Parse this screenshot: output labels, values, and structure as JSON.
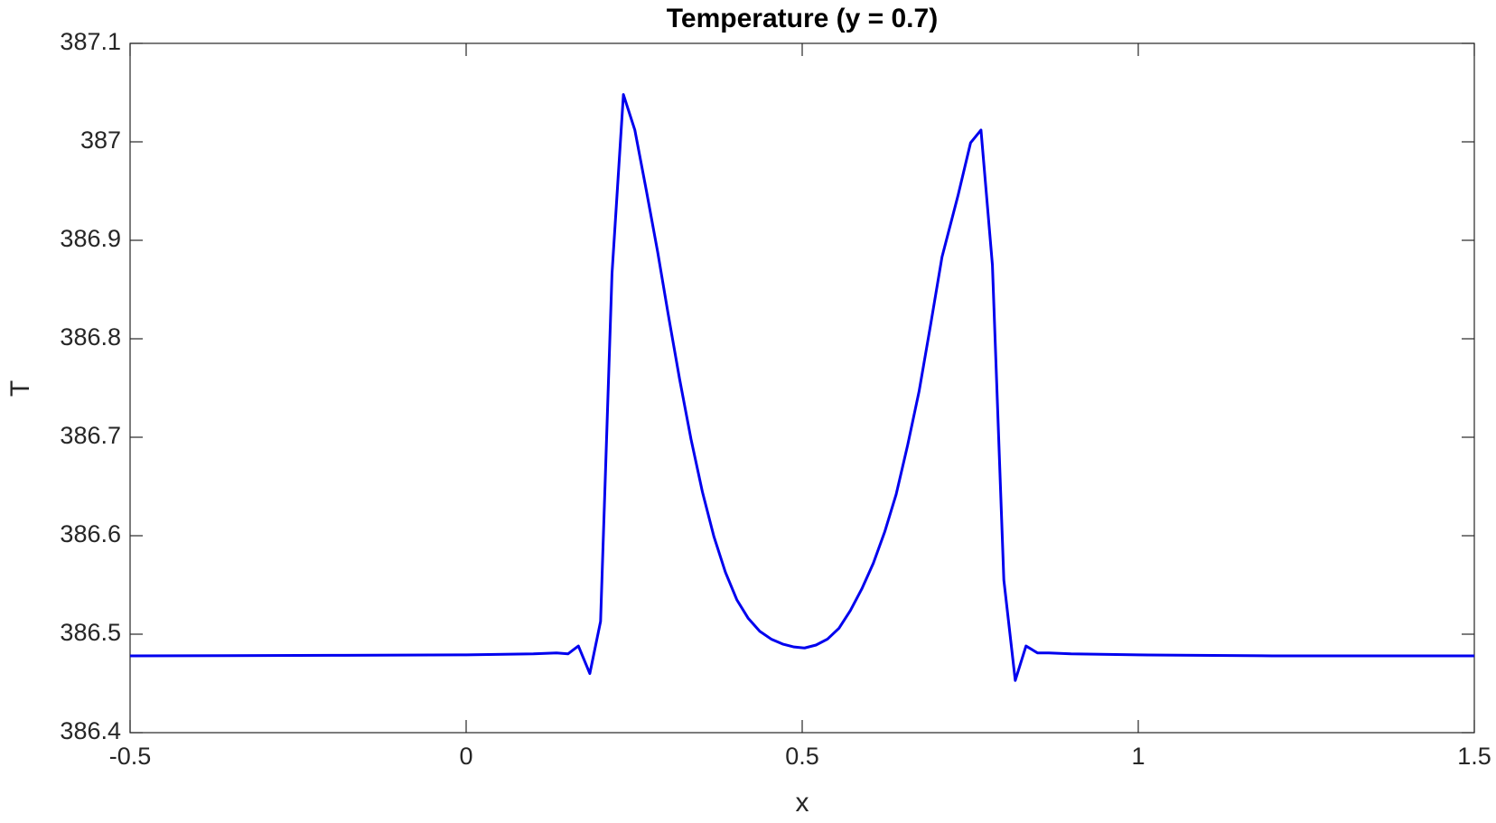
{
  "chart_data": {
    "type": "line",
    "title": "Temperature (y = 0.7)",
    "xlabel": "x",
    "ylabel": "T",
    "series": [
      {
        "name": "T",
        "color": "#0000ee",
        "x": [
          -0.5,
          -0.2,
          0,
          0.1,
          0.1345,
          0.1515,
          0.167,
          0.184,
          0.2,
          0.217,
          0.234,
          0.251,
          0.268,
          0.285,
          0.3006,
          0.3176,
          0.3346,
          0.3517,
          0.3687,
          0.3857,
          0.4027,
          0.4198,
          0.4368,
          0.4539,
          0.4709,
          0.488,
          0.5036,
          0.5206,
          0.5376,
          0.5547,
          0.5717,
          0.5887,
          0.6058,
          0.6228,
          0.6398,
          0.6569,
          0.674,
          0.691,
          0.708,
          0.732,
          0.7505,
          0.766,
          0.783,
          0.8,
          0.817,
          0.833,
          0.85,
          0.867,
          0.9,
          1.0,
          1.2,
          1.5
        ],
        "values": [
          386.478,
          386.4785,
          386.479,
          386.48,
          386.481,
          386.48,
          386.488,
          386.46,
          386.513,
          386.866,
          387.048,
          387.012,
          386.951,
          386.888,
          386.825,
          386.759,
          386.698,
          386.644,
          386.599,
          386.563,
          386.535,
          386.516,
          386.503,
          386.495,
          386.49,
          386.487,
          386.486,
          386.489,
          386.495,
          386.506,
          386.524,
          386.546,
          386.572,
          386.604,
          386.642,
          386.692,
          386.747,
          386.814,
          386.883,
          386.946,
          386.999,
          387.012,
          386.875,
          386.555,
          386.453,
          386.488,
          386.481,
          386.481,
          386.48,
          386.479,
          386.478,
          386.478
        ]
      }
    ],
    "xlim": [
      -0.5,
      1.5
    ],
    "xticks": [
      -0.5,
      0,
      0.5,
      1,
      1.5
    ],
    "ylim": [
      386.4,
      387.1
    ],
    "yticks": [
      386.4,
      386.5,
      386.6,
      386.7,
      386.8,
      386.9,
      387,
      387.1
    ]
  }
}
